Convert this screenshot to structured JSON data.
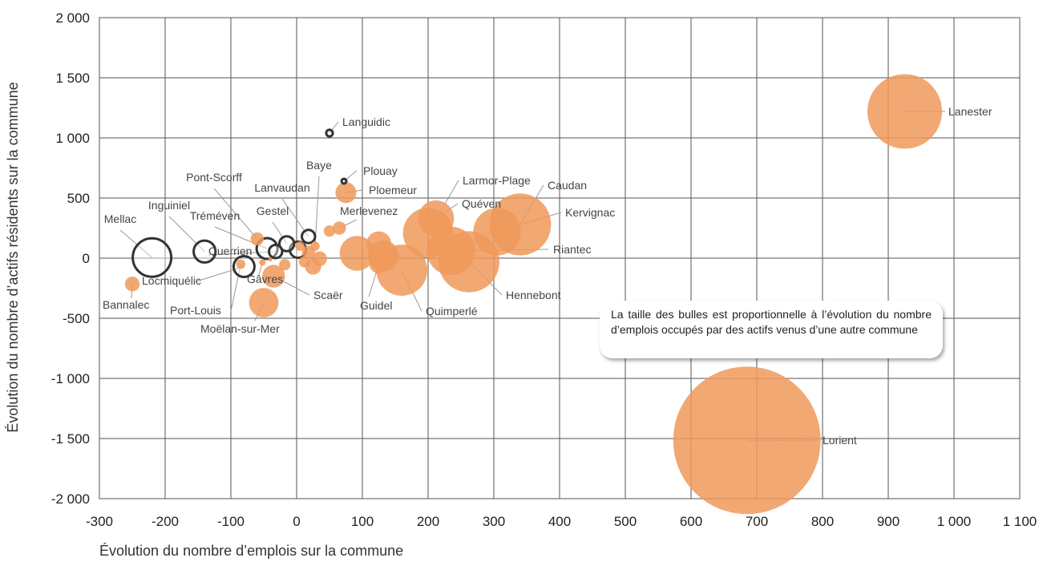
{
  "chart_data": {
    "type": "scatter",
    "xlabel": "Évolution du nombre d’emplois sur la commune",
    "ylabel": "Évolution du nombre d’actifs résidents sur la commune",
    "xlim": [
      -300,
      1100
    ],
    "ylim": [
      -2000,
      2000
    ],
    "x_ticks": [
      {
        "value": -300,
        "label": "-300"
      },
      {
        "value": -200,
        "label": "-200"
      },
      {
        "value": -100,
        "label": "-100"
      },
      {
        "value": 0,
        "label": "0"
      },
      {
        "value": 100,
        "label": "100"
      },
      {
        "value": 200,
        "label": "200"
      },
      {
        "value": 300,
        "label": "300"
      },
      {
        "value": 400,
        "label": "400"
      },
      {
        "value": 500,
        "label": "500"
      },
      {
        "value": 600,
        "label": "600"
      },
      {
        "value": 700,
        "label": "700"
      },
      {
        "value": 800,
        "label": "800"
      },
      {
        "value": 900,
        "label": "900"
      },
      {
        "value": 1000,
        "label": "1 000"
      },
      {
        "value": 1100,
        "label": "1 100"
      }
    ],
    "y_ticks": [
      {
        "value": 2000,
        "label": "2 000"
      },
      {
        "value": 1500,
        "label": "1 500"
      },
      {
        "value": 1000,
        "label": "1 000"
      },
      {
        "value": 500,
        "label": "500"
      },
      {
        "value": 0,
        "label": "0"
      },
      {
        "value": -500,
        "label": "-500"
      },
      {
        "value": -1000,
        "label": "-1 000"
      },
      {
        "value": -1500,
        "label": "-1 500"
      },
      {
        "value": -2000,
        "label": "-2 000"
      }
    ],
    "grid": true,
    "size_note": "La taille des bulles est proportionnelle à l’évolution du nombre d’emplois occupés par des actifs venus d’une autre commune",
    "colors": {
      "positive": "#f0995a",
      "negative_outline": "#333333",
      "grid": "#555555"
    },
    "points": [
      {
        "name": "Lorient",
        "x": 685,
        "y": -1515,
        "size": 2500,
        "sign": "positive"
      },
      {
        "name": "Lanester",
        "x": 925,
        "y": 1220,
        "size": 640,
        "sign": "positive"
      },
      {
        "name": "Quimperlé",
        "x": 160,
        "y": -100,
        "size": 300,
        "sign": "positive"
      },
      {
        "name": "Hennebont",
        "x": 262,
        "y": -30,
        "size": 430,
        "sign": "positive"
      },
      {
        "name": "Caudan",
        "x": 340,
        "y": 280,
        "size": 440,
        "sign": "positive"
      },
      {
        "name": "Kervignac",
        "x": 305,
        "y": 220,
        "size": 260,
        "sign": "positive"
      },
      {
        "name": "Riantec",
        "x": 235,
        "y": 60,
        "size": 270,
        "sign": "positive"
      },
      {
        "name": "Larmor-Plage",
        "x": 200,
        "y": 210,
        "size": 290,
        "sign": "positive"
      },
      {
        "name": "Quéven",
        "x": 212,
        "y": 330,
        "size": 150,
        "sign": "positive"
      },
      {
        "name": "Guidel",
        "x": 125,
        "y": -50,
        "size": 40,
        "sign": "positive"
      },
      {
        "name": "Scaër",
        "x": -35,
        "y": -150,
        "size": 60,
        "sign": "positive"
      },
      {
        "name": "Ploemeur",
        "x": 75,
        "y": 545,
        "size": 50,
        "sign": "positive"
      },
      {
        "name": "Plouay",
        "x": 72,
        "y": 640,
        "size": 2,
        "sign": "negative"
      },
      {
        "name": "Languidic",
        "x": 50,
        "y": 1040,
        "size": 5,
        "sign": "negative"
      },
      {
        "name": "Merlevenez",
        "x": 65,
        "y": 250,
        "size": 20,
        "sign": "positive"
      },
      {
        "name": "Baye",
        "x": 28,
        "y": 100,
        "size": 10,
        "sign": "positive"
      },
      {
        "name": "Lanvaudan",
        "x": 18,
        "y": 180,
        "size": 20,
        "sign": "negative"
      },
      {
        "name": "Gestel",
        "x": -15,
        "y": 120,
        "size": 25,
        "sign": "negative"
      },
      {
        "name": "Pont-Scorff",
        "x": -60,
        "y": 160,
        "size": 20,
        "sign": "positive"
      },
      {
        "name": "Tréméven",
        "x": -45,
        "y": 80,
        "size": 50,
        "sign": "negative"
      },
      {
        "name": "Querrien",
        "x": -32,
        "y": 55,
        "size": 20,
        "sign": "negative"
      },
      {
        "name": "Inguiniel",
        "x": -140,
        "y": 55,
        "size": 55,
        "sign": "negative"
      },
      {
        "name": "Mellac",
        "x": -220,
        "y": 5,
        "size": 170,
        "sign": "negative"
      },
      {
        "name": "Locmiquélic",
        "x": -80,
        "y": -70,
        "size": 50,
        "sign": "negative"
      },
      {
        "name": "Gâvres",
        "x": -52,
        "y": -35,
        "size": 5,
        "sign": "positive"
      },
      {
        "name": "Port-Louis",
        "x": -85,
        "y": -50,
        "size": 10,
        "sign": "positive"
      },
      {
        "name": "Bannalec",
        "x": -250,
        "y": -215,
        "size": 25,
        "sign": "positive"
      },
      {
        "name": "Moëlan-sur-Mer",
        "x": -50,
        "y": -370,
        "size": 100,
        "sign": "positive"
      },
      {
        "name": "",
        "x": 92,
        "y": 40,
        "size": 140,
        "sign": "positive"
      },
      {
        "name": "",
        "x": 125,
        "y": 120,
        "size": 70,
        "sign": "positive"
      },
      {
        "name": "",
        "x": 132,
        "y": 20,
        "size": 110,
        "sign": "positive"
      },
      {
        "name": "",
        "x": 50,
        "y": 225,
        "size": 15,
        "sign": "positive"
      },
      {
        "name": "",
        "x": 35,
        "y": -5,
        "size": 25,
        "sign": "positive"
      },
      {
        "name": "",
        "x": 25,
        "y": -70,
        "size": 30,
        "sign": "positive"
      },
      {
        "name": "",
        "x": 12,
        "y": -30,
        "size": 15,
        "sign": "positive"
      },
      {
        "name": "",
        "x": 18,
        "y": 50,
        "size": 20,
        "sign": "positive"
      },
      {
        "name": "",
        "x": -18,
        "y": -55,
        "size": 15,
        "sign": "positive"
      },
      {
        "name": "",
        "x": 5,
        "y": 100,
        "size": 10,
        "sign": "positive"
      },
      {
        "name": "",
        "x": 2,
        "y": 70,
        "size": 30,
        "sign": "negative"
      },
      {
        "name": "",
        "x": -40,
        "y": -10,
        "size": 2,
        "sign": "positive"
      }
    ]
  }
}
